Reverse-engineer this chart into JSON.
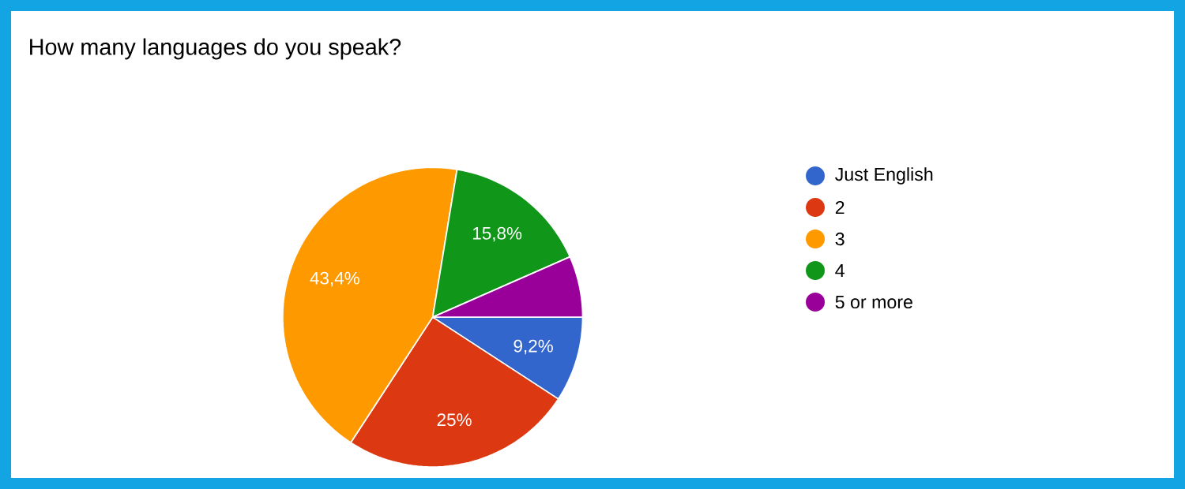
{
  "chart_data": {
    "type": "pie",
    "title": "How many languages do you speak?",
    "categories": [
      "Just English",
      "2",
      "3",
      "4",
      "5 or more"
    ],
    "values": [
      9.2,
      25,
      43.4,
      15.8,
      6.6
    ],
    "colors": [
      "#3366cc",
      "#dc3912",
      "#ff9900",
      "#109618",
      "#990099"
    ],
    "value_labels": [
      "9,2%",
      "25%",
      "43,4%",
      "15,8%",
      null
    ],
    "legend": "right"
  }
}
